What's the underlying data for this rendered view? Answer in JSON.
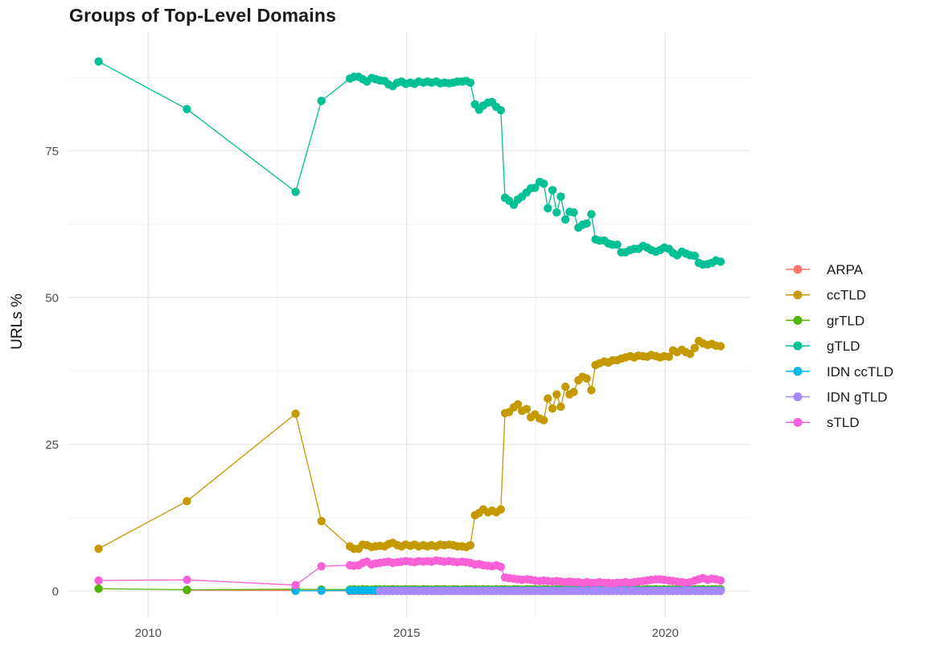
{
  "page": {
    "background": "#ffffff"
  },
  "chart_data": {
    "type": "line",
    "title": "Groups of Top-Level Domains",
    "xlabel": "",
    "ylabel": "URLs %",
    "x_ticks": [
      2010,
      2015,
      2020
    ],
    "y_ticks": [
      0,
      25,
      50,
      75
    ],
    "x_minor": [
      2012.5,
      2017.5
    ],
    "y_minor": [
      12.5,
      37.5,
      62.5,
      87.5
    ],
    "xlim": [
      2008.45,
      2021.65
    ],
    "ylim": [
      -4.5,
      95
    ],
    "grid": true,
    "legend_position": "right",
    "x_monthly": [
      2013.9,
      2013.98,
      2014.07,
      2014.15,
      2014.23,
      2014.32,
      2014.4,
      2014.48,
      2014.57,
      2014.65,
      2014.73,
      2014.82,
      2014.9,
      2014.98,
      2015.07,
      2015.15,
      2015.23,
      2015.32,
      2015.4,
      2015.48,
      2015.57,
      2015.65,
      2015.73,
      2015.82,
      2015.9,
      2015.98,
      2016.07,
      2016.15,
      2016.23,
      2016.32,
      2016.4,
      2016.48,
      2016.57,
      2016.65,
      2016.73,
      2016.82,
      2016.9,
      2016.98,
      2017.07,
      2017.15,
      2017.23,
      2017.32,
      2017.4,
      2017.48,
      2017.57,
      2017.65,
      2017.73,
      2017.82,
      2017.9,
      2017.98,
      2018.07,
      2018.15,
      2018.23,
      2018.32,
      2018.4,
      2018.48,
      2018.57,
      2018.65,
      2018.73,
      2018.82,
      2018.9,
      2018.98,
      2019.07,
      2019.15,
      2019.23,
      2019.32,
      2019.4,
      2019.48,
      2019.57,
      2019.65,
      2019.73,
      2019.82,
      2019.9,
      2019.98,
      2020.07,
      2020.15,
      2020.23,
      2020.32,
      2020.4,
      2020.48,
      2020.57,
      2020.65,
      2020.73,
      2020.82,
      2020.9,
      2020.98,
      2021.07
    ],
    "series": [
      {
        "name": "ARPA",
        "color": "#F8766D",
        "head": [
          [
            2010.75,
            0.15
          ],
          [
            2012.85,
            0.08
          ],
          [
            2013.35,
            0.05
          ]
        ],
        "monthly": [
          0.02,
          0.02,
          0.02,
          0.02,
          0.02,
          0.02,
          0.02,
          0.02,
          0.02,
          0.02,
          0.02,
          0.02,
          0.02,
          0.02,
          0.02,
          0.02,
          0.02,
          0.02,
          0.02,
          0.02,
          0.02,
          0.02,
          0.02,
          0.02,
          0.02,
          0.02,
          0.02,
          0.02,
          0.02,
          0.02,
          0.02,
          0.02,
          0.02,
          0.02,
          0.02,
          0.02,
          0.02,
          0.02,
          0.02,
          0.02,
          0.02,
          0.02,
          0.02,
          0.02,
          0.02,
          0.02,
          0.02,
          0.02,
          0.02,
          0.02,
          0.02,
          0.02,
          0.02,
          0.02,
          0.02,
          0.02,
          0.02,
          0.02,
          0.02,
          0.02,
          0.02,
          0.02,
          0.02,
          0.02,
          0.02,
          0.02,
          0.02,
          0.02,
          0.02,
          0.02,
          0.02,
          0.02,
          0.02,
          0.02,
          0.02,
          0.02,
          0.02,
          0.02,
          0.02,
          0.02,
          0.02,
          0.02,
          0.02,
          0.02,
          0.02,
          0.02,
          0.02
        ]
      },
      {
        "name": "ccTLD",
        "color": "#C49A00",
        "head": [
          [
            2009.04,
            7.2
          ],
          [
            2010.75,
            15.3
          ],
          [
            2012.85,
            30.2
          ],
          [
            2013.35,
            11.9
          ]
        ],
        "monthly": [
          7.6,
          7.2,
          7.2,
          7.9,
          7.8,
          7.5,
          7.6,
          7.7,
          7.6,
          8.0,
          8.2,
          7.8,
          7.6,
          7.9,
          7.7,
          7.9,
          7.6,
          7.8,
          7.6,
          7.8,
          7.6,
          7.9,
          7.8,
          7.9,
          7.8,
          7.6,
          7.6,
          7.5,
          7.8,
          12.9,
          13.3,
          13.9,
          13.4,
          13.7,
          13.4,
          13.9,
          30.3,
          30.5,
          31.3,
          31.8,
          30.7,
          31.0,
          29.6,
          30.1,
          29.4,
          29.1,
          32.8,
          31.1,
          33.5,
          31.4,
          34.8,
          33.5,
          33.9,
          35.9,
          36.5,
          36.2,
          34.2,
          38.5,
          38.8,
          39.1,
          38.9,
          39.3,
          39.3,
          39.6,
          39.8,
          40.0,
          39.8,
          40.1,
          40.0,
          39.9,
          40.2,
          40.0,
          39.8,
          40.0,
          39.9,
          41.0,
          40.7,
          41.1,
          40.7,
          40.4,
          41.4,
          42.6,
          42.2,
          41.9,
          42.1,
          41.8,
          41.7
        ]
      },
      {
        "name": "grTLD",
        "color": "#53B400",
        "head": [
          [
            2009.04,
            0.4
          ],
          [
            2010.75,
            0.2
          ],
          [
            2012.85,
            0.3
          ],
          [
            2013.35,
            0.25
          ]
        ],
        "monthly": [
          0.25,
          0.3,
          0.25,
          0.3,
          0.28,
          0.25,
          0.3,
          0.28,
          0.3,
          0.25,
          0.3,
          0.28,
          0.25,
          0.3,
          0.28,
          0.3,
          0.25,
          0.3,
          0.28,
          0.25,
          0.3,
          0.28,
          0.3,
          0.25,
          0.3,
          0.28,
          0.25,
          0.3,
          0.28,
          0.3,
          0.25,
          0.3,
          0.28,
          0.25,
          0.3,
          0.28,
          0.3,
          0.25,
          0.3,
          0.28,
          0.25,
          0.3,
          0.28,
          0.3,
          0.25,
          0.3,
          0.28,
          0.25,
          0.3,
          0.28,
          0.3,
          0.25,
          0.3,
          0.28,
          0.25,
          0.3,
          0.28,
          0.3,
          0.25,
          0.3,
          0.28,
          0.25,
          0.3,
          0.28,
          0.3,
          0.25,
          0.3,
          0.28,
          0.25,
          0.3,
          0.28,
          0.3,
          0.25,
          0.3,
          0.28,
          0.25,
          0.3,
          0.28,
          0.3,
          0.25,
          0.3,
          0.28,
          0.3,
          0.25,
          0.3,
          0.3,
          0.3
        ]
      },
      {
        "name": "gTLD",
        "color": "#00C094",
        "head": [
          [
            2009.04,
            90.2
          ],
          [
            2010.75,
            82.1
          ],
          [
            2012.85,
            68.0
          ],
          [
            2013.35,
            83.5
          ]
        ],
        "monthly": [
          87.3,
          87.6,
          87.6,
          87.2,
          86.8,
          87.4,
          87.2,
          87.0,
          86.9,
          86.3,
          86.0,
          86.6,
          86.8,
          86.4,
          86.6,
          86.4,
          86.8,
          86.6,
          86.8,
          86.6,
          86.8,
          86.5,
          86.6,
          86.5,
          86.6,
          86.8,
          86.8,
          86.9,
          86.6,
          82.9,
          82.0,
          82.7,
          83.2,
          83.3,
          82.5,
          81.9,
          67.0,
          66.5,
          65.8,
          66.7,
          67.2,
          67.9,
          68.6,
          68.7,
          69.7,
          69.4,
          65.2,
          68.3,
          64.5,
          67.2,
          63.3,
          64.6,
          64.5,
          61.9,
          62.4,
          62.6,
          64.2,
          59.9,
          59.7,
          59.7,
          59.2,
          59.0,
          59.0,
          57.7,
          57.7,
          58.1,
          58.3,
          58.3,
          58.8,
          58.5,
          58.1,
          57.8,
          58.1,
          58.5,
          58.3,
          57.6,
          57.2,
          57.8,
          57.5,
          57.2,
          57.1,
          55.9,
          55.6,
          55.7,
          55.9,
          56.3,
          56.1
        ]
      },
      {
        "name": "IDN ccTLD",
        "color": "#00B6EB",
        "head": [
          [
            2012.85,
            0.03
          ],
          [
            2013.35,
            0.06
          ]
        ],
        "monthly": [
          0.1,
          0.1,
          0.1,
          0.1,
          0.1,
          0.1,
          0.1,
          0.1,
          0.1,
          0.1,
          0.1,
          0.1,
          0.1,
          0.1,
          0.1,
          0.1,
          0.1,
          0.1,
          0.1,
          0.1,
          0.1,
          0.1,
          0.1,
          0.1,
          0.1,
          0.1,
          0.1,
          0.1,
          0.1,
          0.1,
          0.1,
          0.1,
          0.1,
          0.1,
          0.1,
          0.1,
          0.1,
          0.1,
          0.1,
          0.1,
          0.1,
          0.1,
          0.1,
          0.1,
          0.1,
          0.1,
          0.1,
          0.1,
          0.1,
          0.1,
          0.1,
          0.1,
          0.1,
          0.1,
          0.1,
          0.1,
          0.1,
          0.1,
          0.1,
          0.1,
          0.1,
          0.1,
          0.1,
          0.1,
          0.1,
          0.1,
          0.1,
          0.1,
          0.1,
          0.1,
          0.1,
          0.1,
          0.1,
          0.1,
          0.1,
          0.1,
          0.1,
          0.1,
          0.1,
          0.1,
          0.1,
          0.1,
          0.1,
          0.1,
          0.1,
          0.1,
          0.1
        ]
      },
      {
        "name": "IDN gTLD",
        "color": "#A58AFF",
        "head": [],
        "monthly": [
          null,
          null,
          null,
          null,
          null,
          null,
          null,
          0.03,
          0.03,
          0.03,
          0.03,
          0.03,
          0.03,
          0.03,
          0.03,
          0.03,
          0.03,
          0.03,
          0.03,
          0.03,
          0.03,
          0.03,
          0.03,
          0.03,
          0.03,
          0.03,
          0.03,
          0.03,
          0.03,
          0.03,
          0.03,
          0.03,
          0.03,
          0.03,
          0.03,
          0.03,
          0.03,
          0.03,
          0.03,
          0.03,
          0.03,
          0.03,
          0.03,
          0.03,
          0.03,
          0.03,
          0.03,
          0.03,
          0.03,
          0.03,
          0.03,
          0.03,
          0.03,
          0.03,
          0.03,
          0.03,
          0.03,
          0.03,
          0.03,
          0.03,
          0.03,
          0.03,
          0.03,
          0.03,
          0.03,
          0.03,
          0.03,
          0.03,
          0.03,
          0.03,
          0.03,
          0.03,
          0.03,
          0.03,
          0.03,
          0.03,
          0.03,
          0.03,
          0.03,
          0.03,
          0.03,
          0.03,
          0.03,
          0.03,
          0.03,
          0.03,
          0.03
        ]
      },
      {
        "name": "sTLD",
        "color": "#FB61D7",
        "head": [
          [
            2009.04,
            1.8
          ],
          [
            2010.75,
            1.9
          ],
          [
            2012.85,
            1.0
          ],
          [
            2013.35,
            4.2
          ]
        ],
        "monthly": [
          4.4,
          4.3,
          4.4,
          4.8,
          5.0,
          4.5,
          4.7,
          4.8,
          4.9,
          5.0,
          4.8,
          4.9,
          5.0,
          5.1,
          5.0,
          4.9,
          5.1,
          5.0,
          5.1,
          5.0,
          5.2,
          5.1,
          5.0,
          5.1,
          5.0,
          4.9,
          5.0,
          4.9,
          4.8,
          4.5,
          4.6,
          4.4,
          4.3,
          4.2,
          4.4,
          4.1,
          2.3,
          2.2,
          2.1,
          2.0,
          1.9,
          2.0,
          1.9,
          1.8,
          1.7,
          1.8,
          1.7,
          1.6,
          1.7,
          1.6,
          1.5,
          1.6,
          1.5,
          1.5,
          1.4,
          1.5,
          1.4,
          1.4,
          1.5,
          1.4,
          1.4,
          1.3,
          1.4,
          1.4,
          1.5,
          1.4,
          1.5,
          1.6,
          1.7,
          1.8,
          1.9,
          2.0,
          2.0,
          1.9,
          1.8,
          1.7,
          1.6,
          1.5,
          1.4,
          1.5,
          1.8,
          2.0,
          2.2,
          1.9,
          2.1,
          2.0,
          1.8
        ]
      }
    ]
  }
}
